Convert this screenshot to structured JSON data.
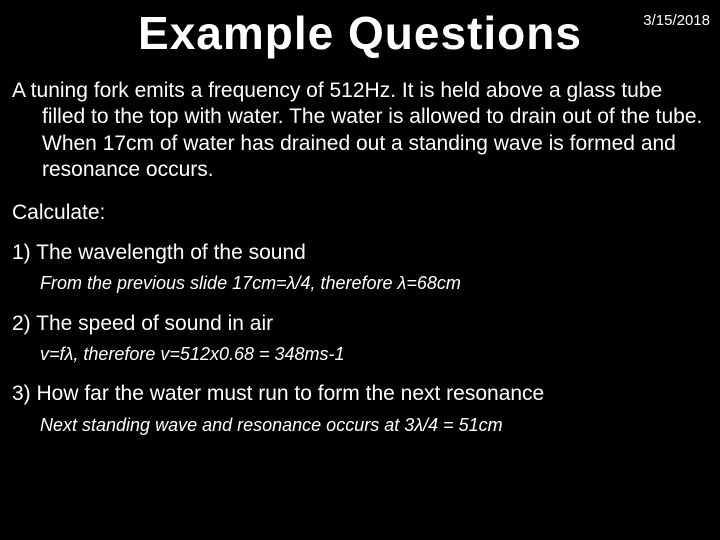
{
  "meta": {
    "date": "3/15/2018",
    "title": "Example Questions"
  },
  "colors": {
    "background": "#000000",
    "text": "#ffffff"
  },
  "typography": {
    "title_fontsize": 46,
    "body_fontsize": 21,
    "answer_fontsize": 18,
    "font_family": "Comic Sans MS"
  },
  "paragraph": "A tuning fork emits a frequency of 512Hz. It is held above a glass tube filled to the top with water. The water is allowed to drain out of the tube. When 17cm of water has drained out a standing wave is formed and resonance occurs.",
  "calculate_label": "Calculate:",
  "questions": [
    {
      "q": "1)  The wavelength of the sound",
      "a": "From the previous slide 17cm=λ/4, therefore λ=68cm"
    },
    {
      "q": "2)  The speed of sound in air",
      "a": "v=fλ, therefore v=512x0.68 = 348ms-1"
    },
    {
      "q": "3)  How far the water must run to form the next resonance",
      "a": "Next standing wave and resonance occurs at 3λ/4 = 51cm"
    }
  ]
}
